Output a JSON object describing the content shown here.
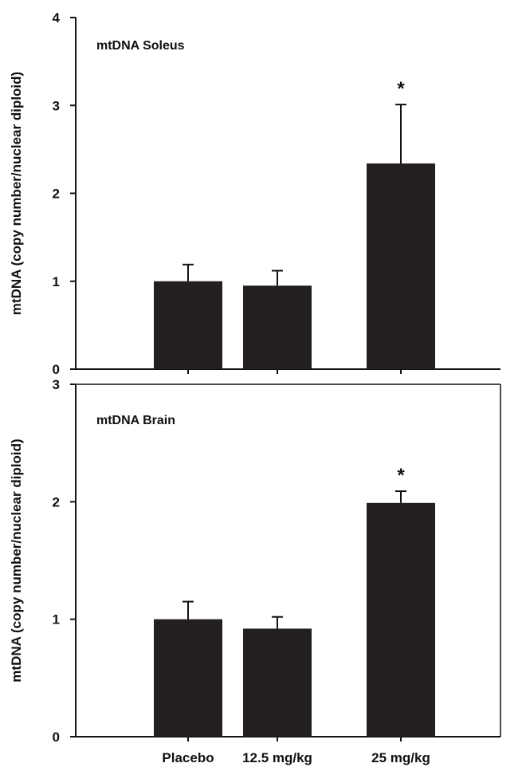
{
  "chart_data": [
    {
      "type": "bar",
      "title": "mtDNA Soleus",
      "ylabel": "mtDNA (copy number/nuclear diploid)",
      "categories": [
        "Placebo",
        "12.5 mg/kg",
        "25 mg/kg"
      ],
      "values": [
        1.0,
        0.95,
        2.34
      ],
      "errors": [
        0.19,
        0.17,
        0.67
      ],
      "annotations": [
        "",
        "",
        "*"
      ],
      "ylim": [
        0,
        4
      ],
      "yticks": [
        "0",
        "1",
        "2",
        "3",
        "4"
      ],
      "bar_color": "#231f20"
    },
    {
      "type": "bar",
      "title": "mtDNA Brain",
      "ylabel": "mtDNA (copy number/nuclear diploid)",
      "categories": [
        "Placebo",
        "12.5 mg/kg",
        "25 mg/kg"
      ],
      "values": [
        1.0,
        0.92,
        1.99
      ],
      "errors": [
        0.15,
        0.1,
        0.1
      ],
      "annotations": [
        "",
        "",
        "*"
      ],
      "ylim": [
        0,
        3
      ],
      "yticks": [
        "0",
        "1",
        "2",
        "3"
      ],
      "bar_color": "#231f20"
    }
  ]
}
